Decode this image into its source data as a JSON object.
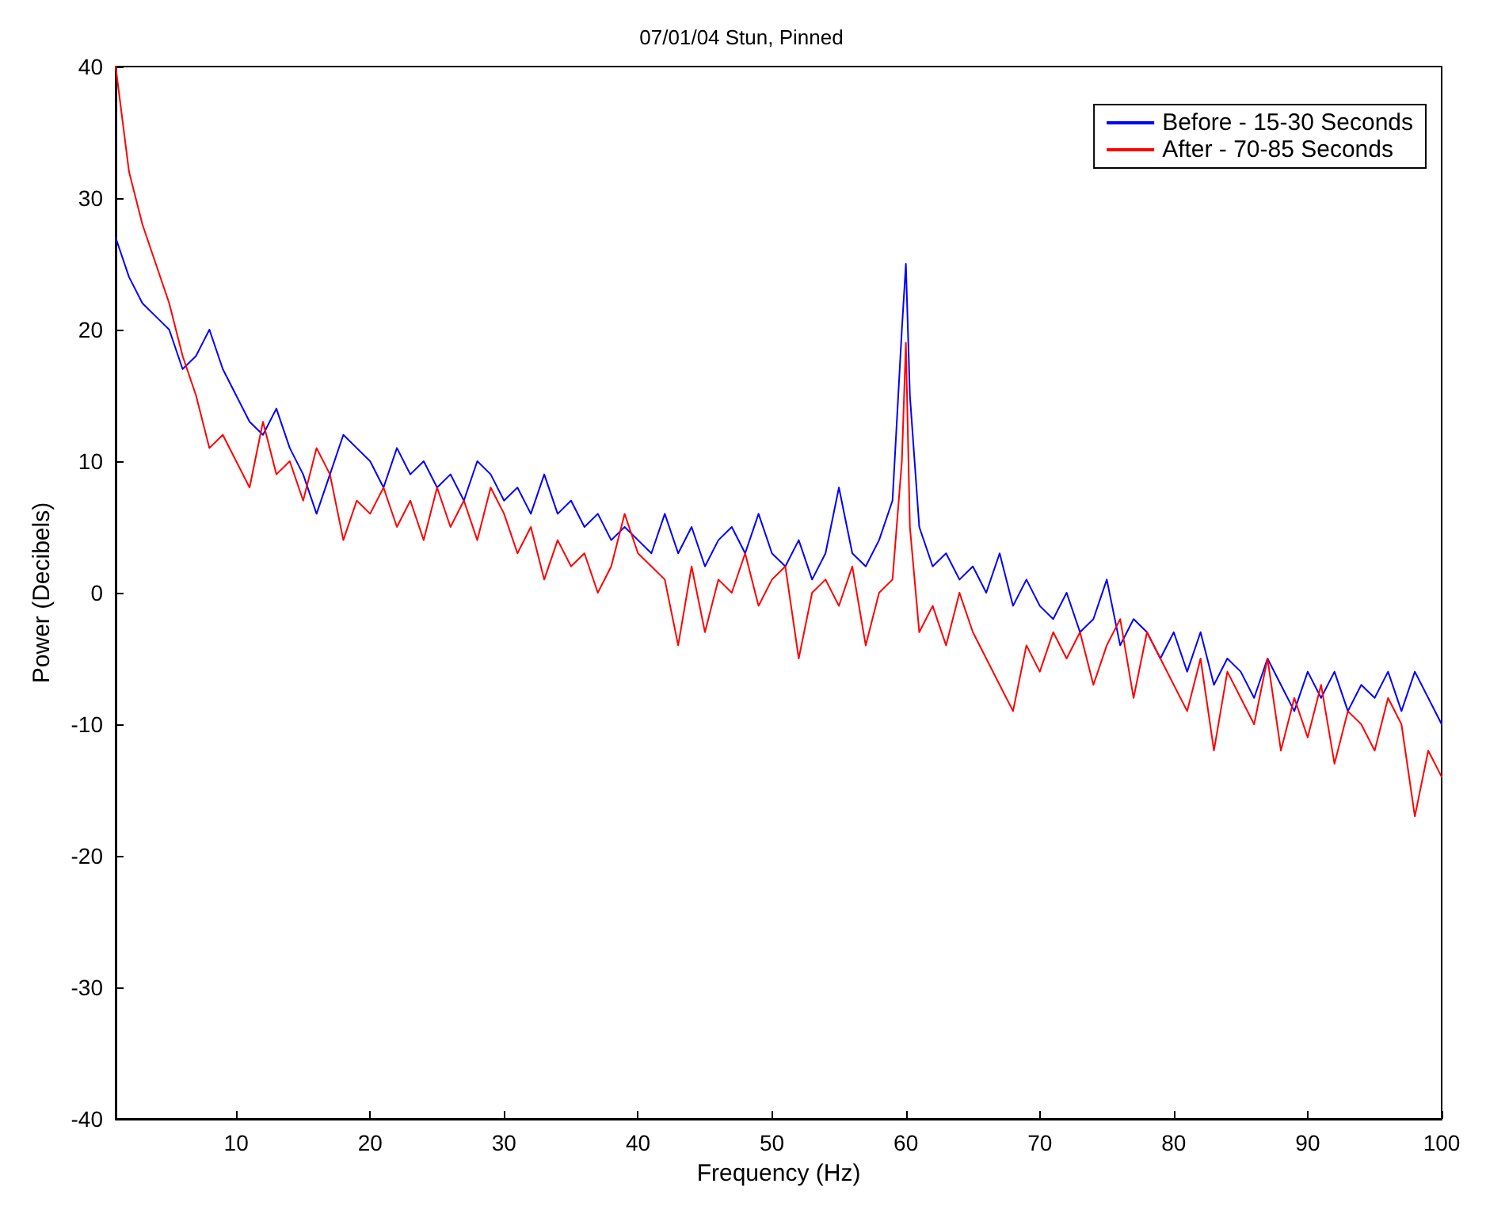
{
  "chart_data": {
    "type": "line",
    "title": "07/01/04 Stun, Pinned",
    "xlabel": "Frequency (Hz)",
    "ylabel": "Power (Decibels)",
    "x": [
      1,
      2,
      3,
      4,
      5,
      6,
      7,
      8,
      9,
      10,
      11,
      12,
      13,
      14,
      15,
      16,
      17,
      18,
      19,
      20,
      21,
      22,
      23,
      24,
      25,
      26,
      27,
      28,
      29,
      30,
      31,
      32,
      33,
      34,
      35,
      36,
      37,
      38,
      39,
      40,
      41,
      42,
      43,
      44,
      45,
      46,
      47,
      48,
      49,
      50,
      51,
      52,
      53,
      54,
      55,
      56,
      57,
      58,
      59,
      59.7,
      60,
      60.3,
      61,
      62,
      63,
      64,
      65,
      66,
      67,
      68,
      69,
      70,
      71,
      72,
      73,
      74,
      75,
      76,
      77,
      78,
      79,
      80,
      81,
      82,
      83,
      84,
      85,
      86,
      87,
      88,
      89,
      90,
      91,
      92,
      93,
      94,
      95,
      96,
      97,
      98,
      99,
      100
    ],
    "series": [
      {
        "name": "Before - 15-30 Seconds",
        "color": "#0000ff",
        "values": [
          27,
          24,
          22,
          21,
          20,
          17,
          18,
          20,
          17,
          15,
          13,
          12,
          14,
          11,
          9,
          6,
          9,
          12,
          11,
          10,
          8,
          11,
          9,
          10,
          8,
          9,
          7,
          10,
          9,
          7,
          8,
          6,
          9,
          6,
          7,
          5,
          6,
          4,
          5,
          4,
          3,
          6,
          3,
          5,
          2,
          4,
          5,
          3,
          6,
          3,
          2,
          4,
          1,
          3,
          8,
          3,
          2,
          4,
          7,
          20,
          25,
          15,
          5,
          2,
          3,
          1,
          2,
          0,
          3,
          -1,
          1,
          -1,
          -2,
          0,
          -3,
          -2,
          1,
          -4,
          -2,
          -3,
          -5,
          -3,
          -6,
          -3,
          -7,
          -5,
          -6,
          -8,
          -5,
          -7,
          -9,
          -6,
          -8,
          -6,
          -9,
          -7,
          -8,
          -6,
          -9,
          -6,
          -8,
          -10
        ]
      },
      {
        "name": "After - 70-85 Seconds",
        "color": "#ff0000",
        "values": [
          40,
          32,
          28,
          25,
          22,
          18,
          15,
          11,
          12,
          10,
          8,
          13,
          9,
          10,
          7,
          11,
          9,
          4,
          7,
          6,
          8,
          5,
          7,
          4,
          8,
          5,
          7,
          4,
          8,
          6,
          3,
          5,
          1,
          4,
          2,
          3,
          0,
          2,
          6,
          3,
          2,
          1,
          -4,
          2,
          -3,
          1,
          0,
          3,
          -1,
          1,
          2,
          -5,
          0,
          1,
          -1,
          2,
          -4,
          0,
          1,
          10,
          19,
          5,
          -3,
          -1,
          -4,
          0,
          -3,
          -5,
          -7,
          -9,
          -4,
          -6,
          -3,
          -5,
          -3,
          -7,
          -4,
          -2,
          -8,
          -3,
          -5,
          -7,
          -9,
          -5,
          -12,
          -6,
          -8,
          -10,
          -5,
          -12,
          -8,
          -11,
          -7,
          -13,
          -9,
          -10,
          -12,
          -8,
          -10,
          -17,
          -12,
          -14
        ]
      }
    ],
    "xlim": [
      1,
      100
    ],
    "xticks": [
      10,
      20,
      30,
      40,
      50,
      60,
      70,
      80,
      90,
      100
    ],
    "ylim": [
      -40,
      40
    ],
    "yticks": [
      -40,
      -30,
      -20,
      -10,
      0,
      10,
      20,
      30,
      40
    ],
    "grid": false,
    "legend": "top right",
    "marker": "none",
    "line_style": "solid"
  }
}
